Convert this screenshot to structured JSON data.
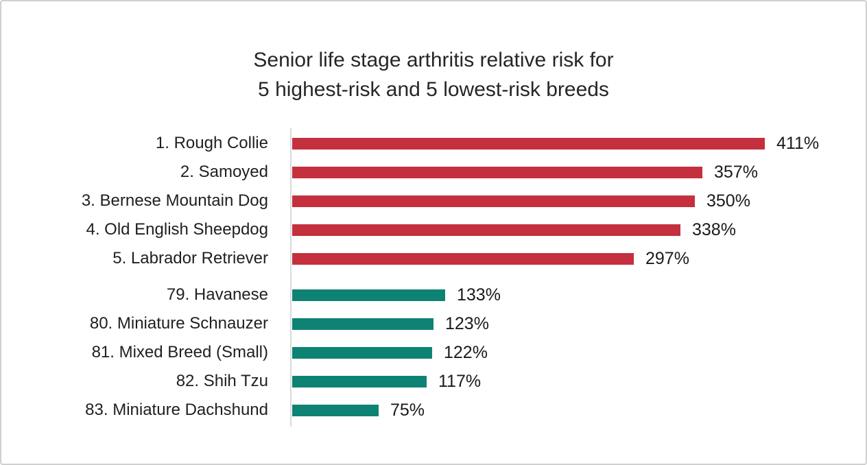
{
  "window": {
    "background": "#ffffff",
    "border_color": "#cfcfcf"
  },
  "chart_data": {
    "type": "bar",
    "orientation": "horizontal",
    "title": "Senior life stage arthritis relative risk for 5 highest-risk and 5 lowest-risk breeds",
    "title_lines": [
      "Senior life stage arthritis relative risk for",
      "5 highest-risk and 5 lowest-risk breeds"
    ],
    "value_suffix": "%",
    "xlim": [
      0,
      450
    ],
    "grid": false,
    "legend": false,
    "axis_line_color": "#d9d9d9",
    "text_color": "#262626",
    "groups": [
      {
        "name": "5 highest-risk breeds",
        "color": "#c4303e",
        "bars": [
          {
            "label": "1. Rough Collie",
            "value": 411,
            "display": "411%"
          },
          {
            "label": "2. Samoyed",
            "value": 357,
            "display": "357%"
          },
          {
            "label": "3. Bernese Mountain Dog",
            "value": 350,
            "display": "350%"
          },
          {
            "label": "4. Old English Sheepdog",
            "value": 338,
            "display": "338%"
          },
          {
            "label": "5. Labrador Retriever",
            "value": 297,
            "display": "297%"
          }
        ]
      },
      {
        "name": "5 lowest-risk breeds",
        "color": "#0e8374",
        "bars": [
          {
            "label": "79. Havanese",
            "value": 133,
            "display": "133%"
          },
          {
            "label": "80. Miniature Schnauzer",
            "value": 123,
            "display": "123%"
          },
          {
            "label": "81. Mixed Breed (Small)",
            "value": 122,
            "display": "122%"
          },
          {
            "label": "82. Shih Tzu",
            "value": 117,
            "display": "117%"
          },
          {
            "label": "83. Miniature Dachshund",
            "value": 75,
            "display": "75%"
          }
        ]
      }
    ]
  }
}
